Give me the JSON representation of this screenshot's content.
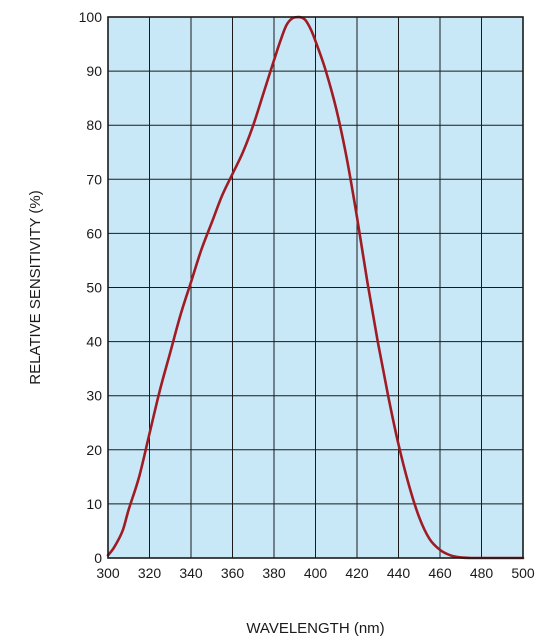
{
  "chart_data": {
    "type": "line",
    "title": "",
    "xlabel": "WAVELENGTH (nm)",
    "ylabel": "RELATIVE SENSITIVITY (%)",
    "xlim": [
      300,
      500
    ],
    "ylim": [
      0,
      100
    ],
    "x_ticks": [
      "300",
      "320",
      "340",
      "360",
      "380",
      "400",
      "420",
      "440",
      "460",
      "480",
      "500"
    ],
    "y_ticks": [
      "0",
      "10",
      "20",
      "30",
      "40",
      "50",
      "60",
      "70",
      "80",
      "90",
      "100"
    ],
    "grid": true,
    "legend": "none",
    "plot_background": "#c8e8f8",
    "grid_color": "#1a1a1a",
    "series": [
      {
        "color": "#a01c24",
        "x": [
          300,
          303,
          307,
          310,
          315,
          320,
          325,
          330,
          335,
          340,
          345,
          350,
          355,
          360,
          365,
          370,
          375,
          380,
          383,
          386,
          389,
          392,
          395,
          398,
          401,
          405,
          410,
          415,
          420,
          425,
          430,
          435,
          440,
          445,
          450,
          455,
          460,
          465,
          470,
          475,
          480,
          485,
          490,
          495,
          500
        ],
        "y": [
          0.5,
          2,
          5,
          9,
          15,
          23,
          31,
          38,
          45,
          51,
          57,
          62,
          67,
          71,
          75,
          80,
          86,
          92,
          95.5,
          98.5,
          99.8,
          100,
          99.5,
          97.5,
          94.5,
          90,
          83,
          74,
          63,
          51,
          40,
          30,
          21,
          13.5,
          7.5,
          3.5,
          1.5,
          0.5,
          0.1,
          0,
          0,
          0,
          0,
          0,
          0
        ]
      }
    ]
  }
}
